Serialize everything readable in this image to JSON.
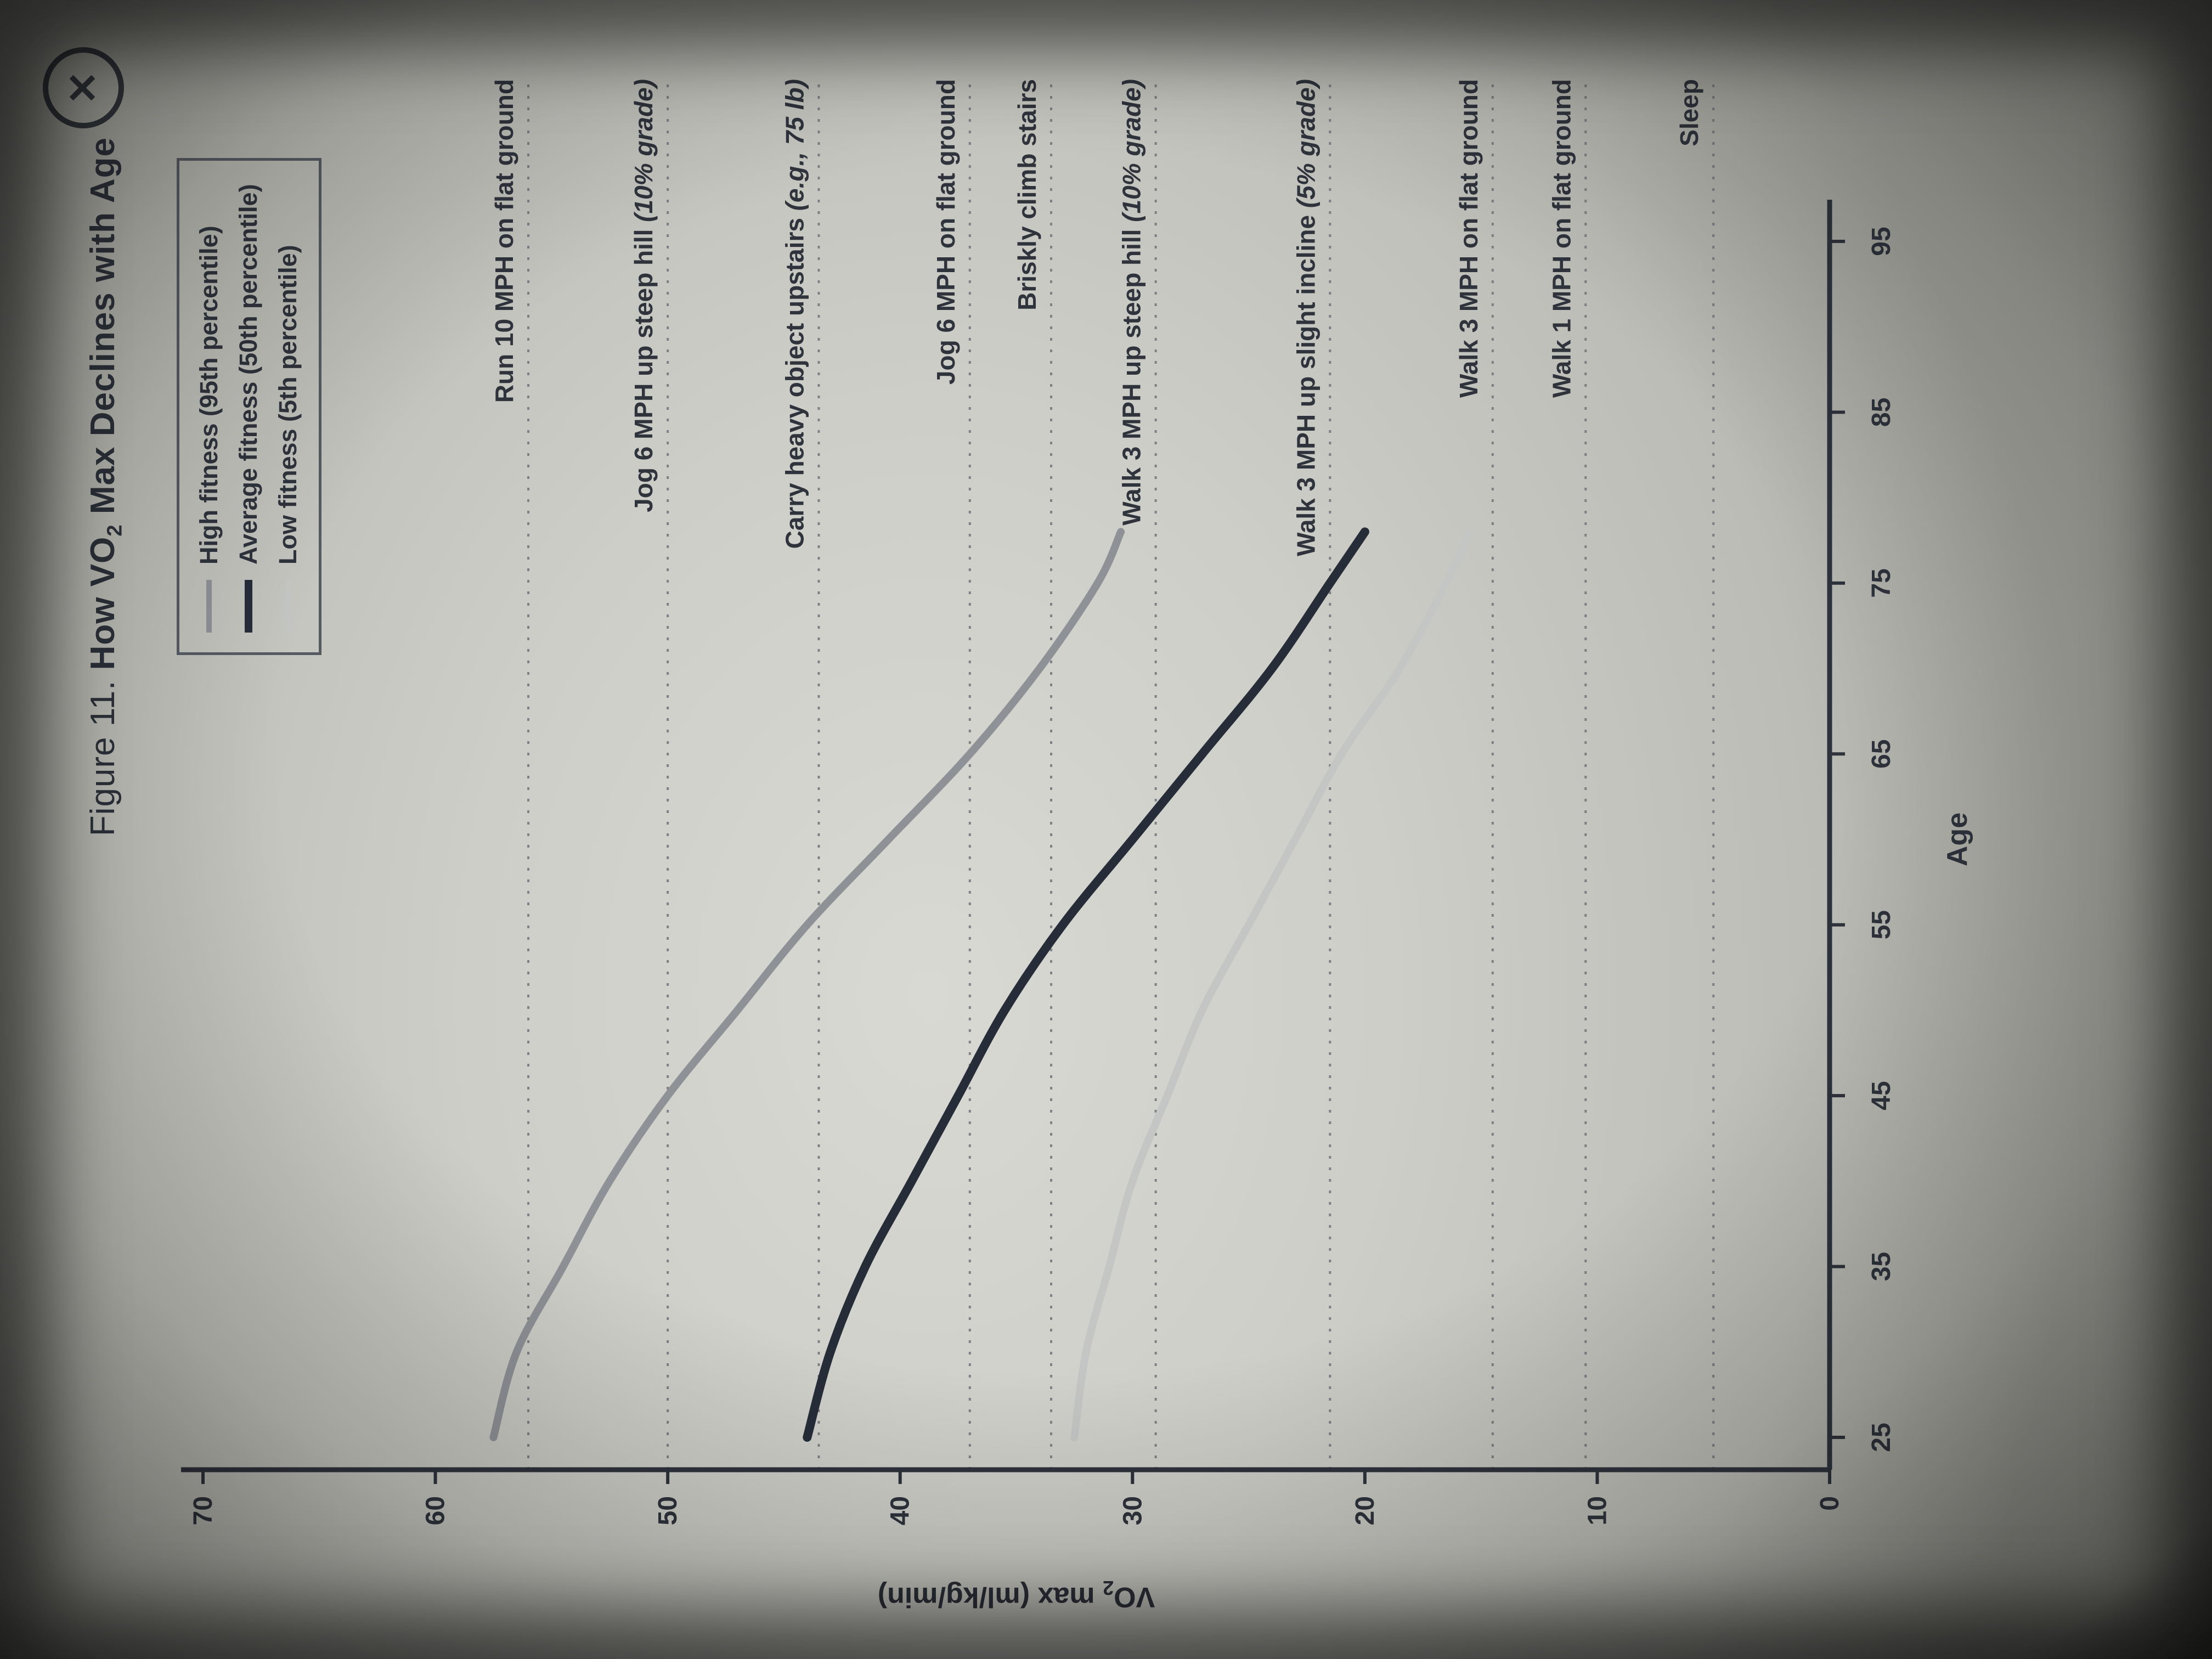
{
  "close": {
    "symbol": "✕"
  },
  "figure": {
    "label": "Figure 11.",
    "title_pre": "How VO",
    "title_sub": "2",
    "title_post": " Max Declines with Age"
  },
  "legend": {
    "items": [
      {
        "label": "High fitness (95th percentile)",
        "color": "#8e9196",
        "thickness": 10
      },
      {
        "label": "Average fitness (50th percentile)",
        "color": "#262d39",
        "thickness": 14
      },
      {
        "label": "Low fitness (5th percentile)",
        "color": "#c4c6c5",
        "thickness": 10
      }
    ]
  },
  "chart_data": {
    "type": "line",
    "title": "Figure 11. How VO2 Max Declines with Age",
    "xlabel": "Age",
    "ylabel_parts": {
      "pre": "VO",
      "sub": "2",
      "post": " max (ml/kg/min)"
    },
    "xlim": [
      22,
      98
    ],
    "ylim": [
      0,
      70
    ],
    "x_ticks": [
      25,
      35,
      45,
      55,
      65,
      75,
      85,
      95
    ],
    "y_ticks": [
      0,
      10,
      20,
      30,
      40,
      50,
      60,
      70
    ],
    "grid": "off",
    "legend_position": "top-left-of-plot",
    "series": [
      {
        "name": "High fitness (95th percentile)",
        "color": "#8e9196",
        "width": 14,
        "points": [
          [
            25,
            57.5
          ],
          [
            30,
            56.5
          ],
          [
            35,
            54.5
          ],
          [
            40,
            52.5
          ],
          [
            45,
            50
          ],
          [
            50,
            47
          ],
          [
            55,
            44
          ],
          [
            60,
            40.5
          ],
          [
            65,
            37
          ],
          [
            70,
            34
          ],
          [
            75,
            31.5
          ],
          [
            78,
            30.5
          ]
        ]
      },
      {
        "name": "Average fitness (50th percentile)",
        "color": "#262d39",
        "width": 16,
        "points": [
          [
            25,
            44
          ],
          [
            30,
            43
          ],
          [
            35,
            41.5
          ],
          [
            40,
            39.5
          ],
          [
            45,
            37.5
          ],
          [
            50,
            35.5
          ],
          [
            55,
            33
          ],
          [
            60,
            30
          ],
          [
            65,
            27
          ],
          [
            70,
            24
          ],
          [
            75,
            21.5
          ],
          [
            78,
            20
          ]
        ]
      },
      {
        "name": "Low fitness (5th percentile)",
        "color": "#c4c6c5",
        "width": 14,
        "points": [
          [
            25,
            32.5
          ],
          [
            30,
            32
          ],
          [
            35,
            31
          ],
          [
            40,
            30
          ],
          [
            45,
            28.5
          ],
          [
            50,
            27
          ],
          [
            55,
            25
          ],
          [
            60,
            23
          ],
          [
            65,
            21
          ],
          [
            70,
            18.5
          ],
          [
            75,
            16.5
          ],
          [
            78,
            15.5
          ]
        ]
      }
    ],
    "reference_lines": [
      {
        "label": "Run 10 MPH on flat ground",
        "suffix": "",
        "vo2": 56
      },
      {
        "label": "Jog 6 MPH up steep hill ",
        "suffix": "(10% grade)",
        "vo2": 50
      },
      {
        "label": "Carry heavy object upstairs ",
        "suffix": "(e.g., 75 lb)",
        "vo2": 43.5
      },
      {
        "label": "Jog 6 MPH on flat ground",
        "suffix": "",
        "vo2": 37
      },
      {
        "label": "Briskly climb stairs",
        "suffix": "",
        "vo2": 33.5
      },
      {
        "label": "Walk 3 MPH up steep hill ",
        "suffix": "(10% grade)",
        "vo2": 29
      },
      {
        "label": "Walk 3 MPH up slight incline ",
        "suffix": "(5% grade)",
        "vo2": 21.5
      },
      {
        "label": "Walk 3 MPH on flat ground",
        "suffix": "",
        "vo2": 14.5
      },
      {
        "label": "Walk 1 MPH on flat ground",
        "suffix": "",
        "vo2": 10.5
      },
      {
        "label": "Sleep",
        "suffix": "",
        "vo2": 5
      }
    ]
  }
}
